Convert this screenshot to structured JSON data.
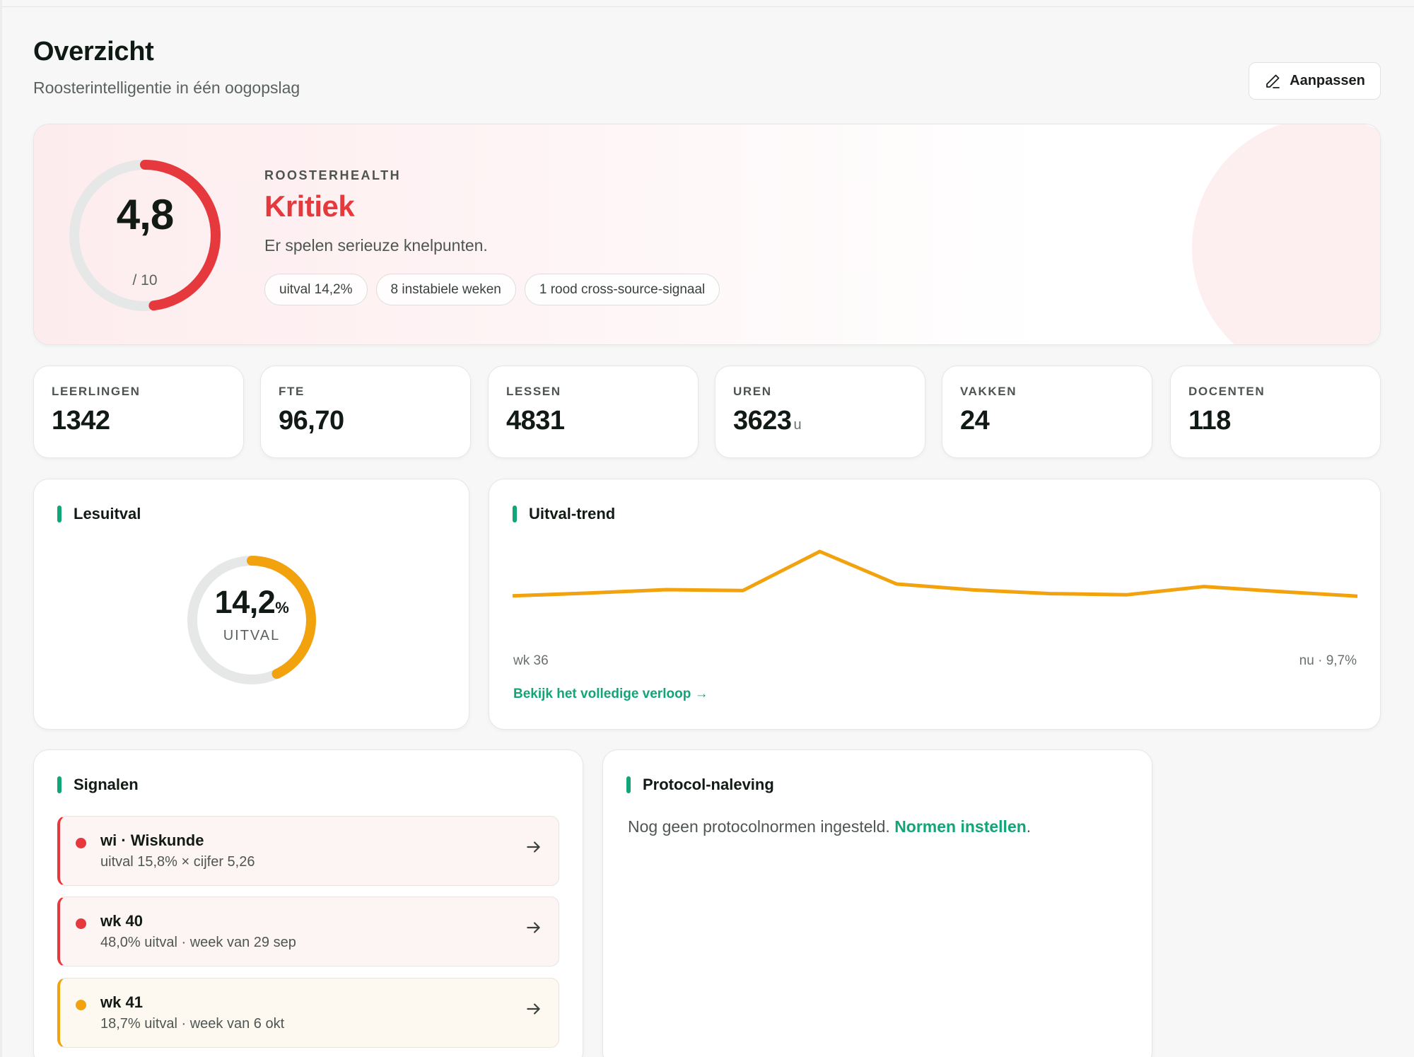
{
  "header": {
    "title": "Overzicht",
    "subtitle": "Roosterintelligentie in één oogopslag",
    "edit_button": "Aanpassen"
  },
  "health": {
    "label": "ROOSTERHEALTH",
    "score": "4,8",
    "max": "/ 10",
    "score_value": 4.8,
    "score_max": 10,
    "status": "Kritiek",
    "description": "Er spelen serieuze knelpunten.",
    "chips": [
      "uitval 14,2%",
      "8 instabiele weken",
      "1 rood cross-source-signaal"
    ]
  },
  "stats": [
    {
      "label": "LEERLINGEN",
      "value": "1342",
      "unit": ""
    },
    {
      "label": "FTE",
      "value": "96,70",
      "unit": ""
    },
    {
      "label": "LESSEN",
      "value": "4831",
      "unit": ""
    },
    {
      "label": "UREN",
      "value": "3623",
      "unit": "u"
    },
    {
      "label": "VAKKEN",
      "value": "24",
      "unit": ""
    },
    {
      "label": "DOCENTEN",
      "value": "118",
      "unit": ""
    }
  ],
  "lesuitval": {
    "title": "Lesuitval",
    "value": "14,2",
    "unit": "%",
    "label": "UITVAL",
    "percent": 14.2
  },
  "trend": {
    "title": "Uitval-trend",
    "start_label": "wk 36",
    "end_label": "nu · 9,7%",
    "link": "Bekijk het volledige verloop →"
  },
  "chart_data": {
    "type": "line",
    "title": "Uitval-trend",
    "x": [
      1,
      2,
      3,
      4,
      5,
      6,
      7,
      8,
      9,
      10,
      11,
      12
    ],
    "series": [
      {
        "values": [
          9.8,
          10.8,
          12.0,
          11.7,
          25.5,
          14.0,
          11.9,
          10.6,
          10.2,
          13.1,
          11.3,
          9.7
        ]
      }
    ],
    "ylim": [
      0,
      27
    ],
    "grid": false,
    "color": "#f2a20d"
  },
  "signalen": {
    "title": "Signalen",
    "items": [
      {
        "title": "wi · Wiskunde",
        "subtitle": "uitval 15,8% × cijfer 5,26",
        "level": "red"
      },
      {
        "title": "wk 40",
        "subtitle": "48,0% uitval · week van 29 sep",
        "level": "red"
      },
      {
        "title": "wk 41",
        "subtitle": "18,7% uitval · week van 6 okt",
        "level": "orange"
      }
    ]
  },
  "protocol": {
    "title": "Protocol-naleving",
    "text": "Nog geen protocolnormen ingesteld.",
    "link": "Normen instellen",
    "suffix": "."
  },
  "colors": {
    "accent": "#12a578",
    "critical": "#e5393e",
    "warning": "#f2a20d",
    "track": "#e6e8e7"
  },
  "icons": {
    "edit": "pencil-icon",
    "signal_arrow": "arrow-right-icon"
  }
}
